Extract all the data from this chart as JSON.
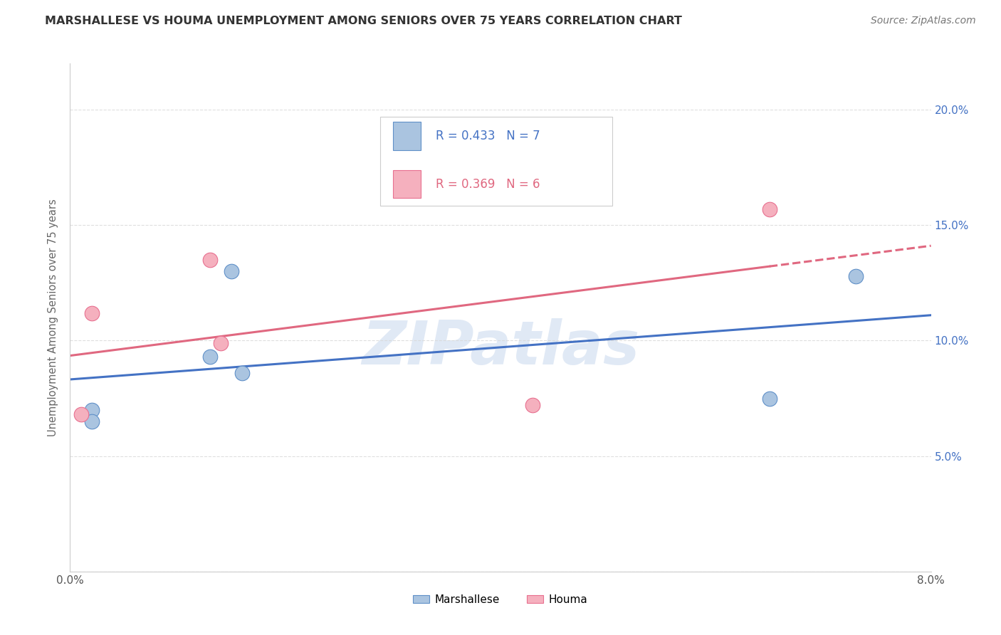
{
  "title": "MARSHALLESE VS HOUMA UNEMPLOYMENT AMONG SENIORS OVER 75 YEARS CORRELATION CHART",
  "source": "Source: ZipAtlas.com",
  "ylabel": "Unemployment Among Seniors over 75 years",
  "xlim": [
    0.0,
    0.08
  ],
  "ylim": [
    0.0,
    0.22
  ],
  "xticks": [
    0.0,
    0.01,
    0.02,
    0.03,
    0.04,
    0.05,
    0.06,
    0.07,
    0.08
  ],
  "xtick_labels": [
    "0.0%",
    "",
    "",
    "",
    "",
    "",
    "",
    "",
    "8.0%"
  ],
  "yticks_left": [
    0.0,
    0.05,
    0.1,
    0.15,
    0.2
  ],
  "ytick_labels_left": [
    "",
    "",
    "",
    "",
    ""
  ],
  "yticks_right": [
    0.05,
    0.1,
    0.15,
    0.2
  ],
  "ytick_labels_right": [
    "5.0%",
    "10.0%",
    "15.0%",
    "20.0%"
  ],
  "marshallese_x": [
    0.002,
    0.002,
    0.013,
    0.015,
    0.016,
    0.065,
    0.073
  ],
  "marshallese_y": [
    0.07,
    0.065,
    0.093,
    0.13,
    0.086,
    0.075,
    0.128
  ],
  "houma_x": [
    0.001,
    0.002,
    0.013,
    0.014,
    0.043,
    0.065
  ],
  "houma_y": [
    0.068,
    0.112,
    0.135,
    0.099,
    0.072,
    0.157
  ],
  "marshallese_R": 0.433,
  "marshallese_N": 7,
  "houma_R": 0.369,
  "houma_N": 6,
  "blue_color": "#aac4e0",
  "blue_edge_color": "#6090c8",
  "blue_line_color": "#4472c4",
  "pink_color": "#f5b0be",
  "pink_edge_color": "#e87090",
  "pink_line_color": "#e06880",
  "right_axis_color": "#4472c4",
  "watermark": "ZIPatlas",
  "watermark_color": "#c8d8ee",
  "background_color": "#ffffff",
  "grid_color": "#d8d8d8"
}
